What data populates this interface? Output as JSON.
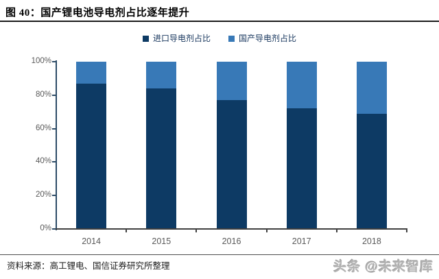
{
  "figure": {
    "title": "图 40：国产锂电池导电剂占比逐年提升",
    "source": "资料来源：高工锂电、国信证券研究所整理",
    "watermark": "头条 @未来智库"
  },
  "chart_data": {
    "type": "bar",
    "stacked": true,
    "title": "国产锂电池导电剂占比逐年提升",
    "categories": [
      "2014",
      "2015",
      "2016",
      "2017",
      "2018"
    ],
    "series": [
      {
        "name": "进口导电剂占比",
        "color": "#0d3a64",
        "values": [
          87,
          84,
          77,
          72,
          69
        ]
      },
      {
        "name": "国产导电剂占比",
        "color": "#3879b7",
        "values": [
          13,
          16,
          23,
          28,
          31
        ]
      }
    ],
    "unit": "%",
    "ylim": [
      0,
      100
    ],
    "ytick_step": 20,
    "yticks": [
      "0%",
      "20%",
      "40%",
      "60%",
      "80%",
      "100%"
    ],
    "legend_position": "top-center",
    "grid": false
  }
}
